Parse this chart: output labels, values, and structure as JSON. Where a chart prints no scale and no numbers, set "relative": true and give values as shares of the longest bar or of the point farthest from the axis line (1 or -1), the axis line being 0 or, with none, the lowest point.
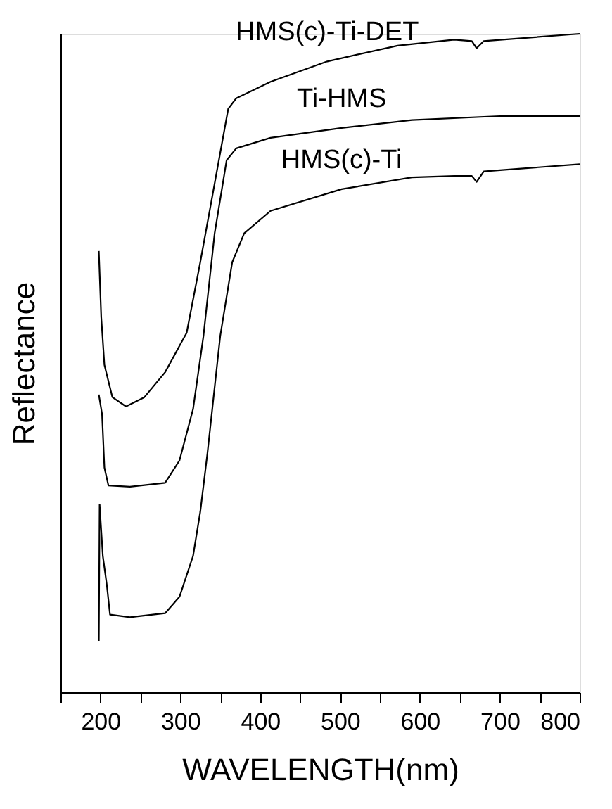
{
  "chart_data": {
    "type": "line",
    "relative": true,
    "xlabel": "WAVELENGTH(nm)",
    "ylabel": "Reflectance",
    "xlim": [
      150,
      800
    ],
    "xticks": [
      {
        "value": 150,
        "label": null
      },
      200,
      {
        "value": 250,
        "label": null
      },
      300,
      {
        "value": 350,
        "label": null
      },
      400,
      {
        "value": 450,
        "label": null
      },
      500,
      {
        "value": 550,
        "label": null
      },
      600,
      {
        "value": 650,
        "label": null
      },
      700,
      {
        "value": 750,
        "label": null
      },
      800
    ],
    "grid": false,
    "marker": "none",
    "line_style": "solid",
    "legend": false,
    "series": [
      {
        "name": "HMS(c)-Ti-DET",
        "color": "#000000",
        "x": [
          198,
          201,
          205,
          215,
          232,
          255,
          281,
          308,
          325,
          345,
          360,
          370,
          413,
          484,
          572,
          643,
          665,
          671,
          680,
          800
        ],
        "values": [
          0.67,
          0.57,
          0.497,
          0.448,
          0.434,
          0.448,
          0.486,
          0.546,
          0.653,
          0.786,
          0.886,
          0.902,
          0.927,
          0.958,
          0.982,
          0.991,
          0.989,
          0.978,
          0.989,
          1
        ]
      },
      {
        "name": "Ti-HMS",
        "color": "#000000",
        "x": [
          198,
          202,
          205,
          210,
          237,
          281,
          299,
          316,
          329,
          343,
          358,
          370,
          413,
          502,
          590,
          700,
          800
        ],
        "values": [
          0.452,
          0.423,
          0.341,
          0.314,
          0.312,
          0.318,
          0.352,
          0.43,
          0.541,
          0.697,
          0.808,
          0.826,
          0.842,
          0.857,
          0.869,
          0.875,
          0.875
        ]
      },
      {
        "name": "HMS(c)-Ti",
        "color": "#000000",
        "x": [
          198,
          199,
          203,
          208,
          212,
          237,
          281,
          299,
          316,
          325,
          334,
          350,
          365,
          380,
          413,
          502,
          590,
          643,
          665,
          671,
          680,
          800
        ],
        "values": [
          0.078,
          0.285,
          0.207,
          0.163,
          0.118,
          0.114,
          0.12,
          0.145,
          0.207,
          0.274,
          0.363,
          0.541,
          0.653,
          0.697,
          0.731,
          0.764,
          0.782,
          0.784,
          0.784,
          0.775,
          0.791,
          0.802
        ]
      }
    ]
  }
}
